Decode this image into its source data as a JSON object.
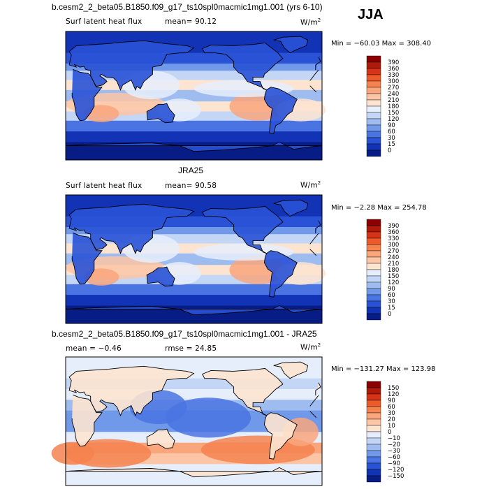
{
  "figure": {
    "season": "JJA"
  },
  "panels": [
    {
      "title": "b.cesm2_2_beta05.B1850.f09_g17_ts10spl0macmic1mg1.001 (yrs 6-10)",
      "variable": "Surf latent heat flux",
      "mean_text": "mean=  90.12",
      "units_text": "W/m",
      "units_exp": "2",
      "minmax_text": "Min = −60.03 Max = 308.40",
      "kind": "abs"
    },
    {
      "title": "JRA25",
      "variable": "Surf latent heat flux",
      "mean_text": "mean=  90.58",
      "units_text": "W/m",
      "units_exp": "2",
      "minmax_text": "Min =  −2.28 Max = 254.78",
      "kind": "abs"
    },
    {
      "title": "b.cesm2_2_beta05.B1850.f09_g17_ts10spl0macmic1mg1.001 - JRA25",
      "variable": "mean =  −0.46",
      "mean_text": "rmse =  24.85",
      "units_text": "W/m",
      "units_exp": "2",
      "minmax_text": "Min = −131.27 Max = 123.98",
      "kind": "diff"
    }
  ],
  "chart_data": [
    {
      "type": "heatmap",
      "title": "b.cesm2_2_beta05.B1850.f09_g17_ts10spl0macmic1mg1.001 (yrs 6-10)",
      "subtitle": "Surf latent heat flux",
      "mean": 90.12,
      "min": -60.03,
      "max": 308.4,
      "units": "W/m2",
      "colorbar_levels": [
        "390",
        "360",
        "330",
        "300",
        "270",
        "240",
        "210",
        "180",
        "150",
        "120",
        "90",
        "60",
        "30",
        "15",
        "0"
      ],
      "colorbar_colors": [
        "#8b0000",
        "#b01a0a",
        "#d63318",
        "#ee5a2a",
        "#f5824f",
        "#f9a67d",
        "#fcc6a6",
        "#fde4d0",
        "#e6eefb",
        "#c4d6f6",
        "#9fbcf1",
        "#7199ea",
        "#4a74e2",
        "#2952d6",
        "#1233b5",
        "#081c86"
      ]
    },
    {
      "type": "heatmap",
      "title": "JRA25",
      "subtitle": "Surf latent heat flux",
      "mean": 90.58,
      "min": -2.28,
      "max": 254.78,
      "units": "W/m2",
      "colorbar_levels": [
        "390",
        "360",
        "330",
        "300",
        "270",
        "240",
        "210",
        "180",
        "150",
        "120",
        "90",
        "60",
        "30",
        "15",
        "0"
      ],
      "colorbar_colors": [
        "#8b0000",
        "#b01a0a",
        "#d63318",
        "#ee5a2a",
        "#f5824f",
        "#f9a67d",
        "#fcc6a6",
        "#fde4d0",
        "#e6eefb",
        "#c4d6f6",
        "#9fbcf1",
        "#7199ea",
        "#4a74e2",
        "#2952d6",
        "#1233b5",
        "#081c86"
      ]
    },
    {
      "type": "heatmap",
      "title": "b.cesm2_2_beta05.B1850.f09_g17_ts10spl0macmic1mg1.001 - JRA25",
      "mean": -0.46,
      "rmse": 24.85,
      "min": -131.27,
      "max": 123.98,
      "units": "W/m2",
      "colorbar_levels": [
        "150",
        "120",
        "90",
        "60",
        "30",
        "20",
        "10",
        "0",
        "−10",
        "−20",
        "−30",
        "−60",
        "−90",
        "−120",
        "−150"
      ],
      "colorbar_colors": [
        "#8b0000",
        "#b01a0a",
        "#d63318",
        "#ee5a2a",
        "#f5824f",
        "#f9a67d",
        "#fcc6a6",
        "#fde4d0",
        "#e6eefb",
        "#c4d6f6",
        "#9fbcf1",
        "#7199ea",
        "#4a74e2",
        "#2952d6",
        "#1233b5",
        "#081c86"
      ]
    }
  ]
}
